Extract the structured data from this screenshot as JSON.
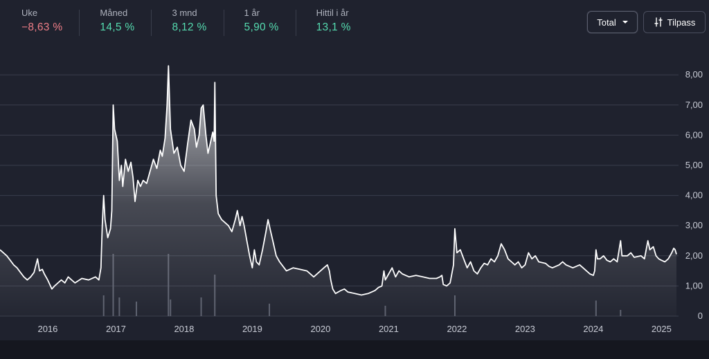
{
  "stats": [
    {
      "label": "Uke",
      "value": "−8,63 %",
      "sign": "neg"
    },
    {
      "label": "Måned",
      "value": "14,5 %",
      "sign": "pos"
    },
    {
      "label": "3 mnd",
      "value": "8,12 %",
      "sign": "pos"
    },
    {
      "label": "1 år",
      "value": "5,90 %",
      "sign": "pos"
    },
    {
      "label": "Hittil i år",
      "value": "13,1 %",
      "sign": "pos"
    }
  ],
  "controls": {
    "period_label": "Total",
    "customize_label": "Tilpass"
  },
  "colors": {
    "negative": "#f07f88",
    "positive": "#55dcb0",
    "line": "#ffffff",
    "background": "#1f222e"
  },
  "chart_data": {
    "type": "area",
    "x_tick_labels": [
      "2016",
      "2017",
      "2018",
      "2019",
      "2020",
      "2021",
      "2022",
      "2023",
      "2024",
      "2025"
    ],
    "y_tick_labels": [
      "0",
      "1,00",
      "2,00",
      "3,00",
      "4,00",
      "5,00",
      "6,00",
      "7,00",
      "8,00"
    ],
    "ylim": [
      0,
      8.5
    ],
    "xlim": [
      2015.3,
      2025.25
    ],
    "grid": true,
    "y_axis_side": "right",
    "series": [
      {
        "points": [
          [
            2015.3,
            2.2
          ],
          [
            2015.35,
            2.1
          ],
          [
            2015.4,
            2.0
          ],
          [
            2015.45,
            1.85
          ],
          [
            2015.5,
            1.7
          ],
          [
            2015.55,
            1.6
          ],
          [
            2015.6,
            1.45
          ],
          [
            2015.65,
            1.3
          ],
          [
            2015.7,
            1.2
          ],
          [
            2015.75,
            1.3
          ],
          [
            2015.8,
            1.45
          ],
          [
            2015.85,
            1.9
          ],
          [
            2015.88,
            1.5
          ],
          [
            2015.92,
            1.55
          ],
          [
            2015.95,
            1.4
          ],
          [
            2016.0,
            1.2
          ],
          [
            2016.03,
            1.05
          ],
          [
            2016.06,
            0.9
          ],
          [
            2016.1,
            1.0
          ],
          [
            2016.15,
            1.1
          ],
          [
            2016.2,
            1.2
          ],
          [
            2016.25,
            1.1
          ],
          [
            2016.3,
            1.3
          ],
          [
            2016.35,
            1.2
          ],
          [
            2016.4,
            1.1
          ],
          [
            2016.5,
            1.25
          ],
          [
            2016.6,
            1.2
          ],
          [
            2016.7,
            1.3
          ],
          [
            2016.75,
            1.2
          ],
          [
            2016.78,
            1.6
          ],
          [
            2016.8,
            3.0
          ],
          [
            2016.82,
            4.0
          ],
          [
            2016.84,
            3.2
          ],
          [
            2016.88,
            2.6
          ],
          [
            2016.92,
            2.9
          ],
          [
            2016.94,
            3.5
          ],
          [
            2016.96,
            7.0
          ],
          [
            2016.98,
            6.2
          ],
          [
            2017.02,
            5.8
          ],
          [
            2017.05,
            4.5
          ],
          [
            2017.08,
            5.0
          ],
          [
            2017.1,
            4.3
          ],
          [
            2017.14,
            5.2
          ],
          [
            2017.18,
            4.8
          ],
          [
            2017.22,
            5.1
          ],
          [
            2017.25,
            4.6
          ],
          [
            2017.28,
            3.8
          ],
          [
            2017.32,
            4.5
          ],
          [
            2017.36,
            4.3
          ],
          [
            2017.4,
            4.5
          ],
          [
            2017.45,
            4.4
          ],
          [
            2017.5,
            4.8
          ],
          [
            2017.55,
            5.2
          ],
          [
            2017.6,
            4.9
          ],
          [
            2017.65,
            5.5
          ],
          [
            2017.68,
            5.3
          ],
          [
            2017.72,
            5.9
          ],
          [
            2017.75,
            7.0
          ],
          [
            2017.77,
            8.3
          ],
          [
            2017.8,
            6.2
          ],
          [
            2017.85,
            5.4
          ],
          [
            2017.9,
            5.6
          ],
          [
            2017.95,
            5.0
          ],
          [
            2018.0,
            4.8
          ],
          [
            2018.05,
            5.7
          ],
          [
            2018.1,
            6.5
          ],
          [
            2018.15,
            6.2
          ],
          [
            2018.18,
            5.6
          ],
          [
            2018.22,
            6.0
          ],
          [
            2018.25,
            6.9
          ],
          [
            2018.28,
            7.0
          ],
          [
            2018.32,
            6.0
          ],
          [
            2018.35,
            5.4
          ],
          [
            2018.38,
            5.7
          ],
          [
            2018.42,
            6.1
          ],
          [
            2018.44,
            5.8
          ],
          [
            2018.45,
            7.75
          ],
          [
            2018.47,
            4.0
          ],
          [
            2018.5,
            3.4
          ],
          [
            2018.55,
            3.2
          ],
          [
            2018.6,
            3.1
          ],
          [
            2018.65,
            3.0
          ],
          [
            2018.7,
            2.8
          ],
          [
            2018.75,
            3.2
          ],
          [
            2018.78,
            3.5
          ],
          [
            2018.82,
            3.0
          ],
          [
            2018.85,
            3.3
          ],
          [
            2018.88,
            3.0
          ],
          [
            2018.92,
            2.5
          ],
          [
            2018.96,
            2.0
          ],
          [
            2019.0,
            1.6
          ],
          [
            2019.03,
            2.2
          ],
          [
            2019.06,
            1.8
          ],
          [
            2019.1,
            1.7
          ],
          [
            2019.15,
            2.2
          ],
          [
            2019.2,
            2.8
          ],
          [
            2019.23,
            3.2
          ],
          [
            2019.26,
            2.9
          ],
          [
            2019.3,
            2.5
          ],
          [
            2019.35,
            2.0
          ],
          [
            2019.4,
            1.8
          ],
          [
            2019.5,
            1.5
          ],
          [
            2019.6,
            1.6
          ],
          [
            2019.7,
            1.55
          ],
          [
            2019.8,
            1.5
          ],
          [
            2019.9,
            1.3
          ],
          [
            2020.0,
            1.5
          ],
          [
            2020.05,
            1.6
          ],
          [
            2020.1,
            1.7
          ],
          [
            2020.13,
            1.5
          ],
          [
            2020.15,
            1.2
          ],
          [
            2020.18,
            0.9
          ],
          [
            2020.22,
            0.75
          ],
          [
            2020.3,
            0.85
          ],
          [
            2020.35,
            0.9
          ],
          [
            2020.4,
            0.8
          ],
          [
            2020.5,
            0.75
          ],
          [
            2020.6,
            0.7
          ],
          [
            2020.7,
            0.75
          ],
          [
            2020.8,
            0.85
          ],
          [
            2020.85,
            0.95
          ],
          [
            2020.9,
            1.0
          ],
          [
            2020.93,
            1.5
          ],
          [
            2020.95,
            1.2
          ],
          [
            2021.0,
            1.4
          ],
          [
            2021.05,
            1.6
          ],
          [
            2021.1,
            1.3
          ],
          [
            2021.15,
            1.5
          ],
          [
            2021.2,
            1.4
          ],
          [
            2021.3,
            1.3
          ],
          [
            2021.4,
            1.35
          ],
          [
            2021.5,
            1.3
          ],
          [
            2021.6,
            1.25
          ],
          [
            2021.7,
            1.25
          ],
          [
            2021.75,
            1.3
          ],
          [
            2021.78,
            1.35
          ],
          [
            2021.8,
            1.05
          ],
          [
            2021.85,
            1.0
          ],
          [
            2021.9,
            1.1
          ],
          [
            2021.95,
            1.7
          ],
          [
            2021.97,
            2.9
          ],
          [
            2022.0,
            2.1
          ],
          [
            2022.05,
            2.2
          ],
          [
            2022.1,
            1.9
          ],
          [
            2022.15,
            1.6
          ],
          [
            2022.2,
            1.8
          ],
          [
            2022.25,
            1.5
          ],
          [
            2022.3,
            1.4
          ],
          [
            2022.35,
            1.6
          ],
          [
            2022.4,
            1.75
          ],
          [
            2022.45,
            1.7
          ],
          [
            2022.5,
            1.9
          ],
          [
            2022.55,
            1.8
          ],
          [
            2022.6,
            2.0
          ],
          [
            2022.65,
            2.4
          ],
          [
            2022.7,
            2.2
          ],
          [
            2022.75,
            1.9
          ],
          [
            2022.8,
            1.8
          ],
          [
            2022.85,
            1.7
          ],
          [
            2022.9,
            1.8
          ],
          [
            2022.95,
            1.6
          ],
          [
            2023.0,
            1.7
          ],
          [
            2023.05,
            2.1
          ],
          [
            2023.1,
            1.9
          ],
          [
            2023.15,
            2.0
          ],
          [
            2023.2,
            1.8
          ],
          [
            2023.3,
            1.75
          ],
          [
            2023.35,
            1.65
          ],
          [
            2023.4,
            1.6
          ],
          [
            2023.5,
            1.7
          ],
          [
            2023.55,
            1.8
          ],
          [
            2023.6,
            1.7
          ],
          [
            2023.7,
            1.6
          ],
          [
            2023.8,
            1.7
          ],
          [
            2023.85,
            1.6
          ],
          [
            2023.9,
            1.5
          ],
          [
            2023.95,
            1.4
          ],
          [
            2024.0,
            1.35
          ],
          [
            2024.02,
            1.5
          ],
          [
            2024.04,
            2.2
          ],
          [
            2024.06,
            1.9
          ],
          [
            2024.1,
            1.9
          ],
          [
            2024.15,
            2.0
          ],
          [
            2024.2,
            1.85
          ],
          [
            2024.25,
            1.8
          ],
          [
            2024.3,
            1.9
          ],
          [
            2024.35,
            1.8
          ],
          [
            2024.4,
            2.5
          ],
          [
            2024.42,
            2.0
          ],
          [
            2024.5,
            2.0
          ],
          [
            2024.55,
            2.1
          ],
          [
            2024.6,
            1.95
          ],
          [
            2024.7,
            2.0
          ],
          [
            2024.75,
            1.9
          ],
          [
            2024.8,
            2.5
          ],
          [
            2024.83,
            2.2
          ],
          [
            2024.88,
            2.3
          ],
          [
            2024.92,
            2.0
          ],
          [
            2024.96,
            1.9
          ],
          [
            2025.0,
            1.85
          ],
          [
            2025.05,
            1.8
          ],
          [
            2025.1,
            1.9
          ],
          [
            2025.15,
            2.1
          ],
          [
            2025.18,
            2.25
          ],
          [
            2025.2,
            2.2
          ],
          [
            2025.22,
            2.05
          ]
        ]
      }
    ],
    "volume_spikes": [
      [
        2016.82,
        1.0
      ],
      [
        2016.96,
        3.0
      ],
      [
        2017.05,
        0.9
      ],
      [
        2017.3,
        0.7
      ],
      [
        2017.77,
        3.0
      ],
      [
        2017.8,
        0.8
      ],
      [
        2018.25,
        0.9
      ],
      [
        2018.45,
        2.0
      ],
      [
        2019.25,
        0.6
      ],
      [
        2020.95,
        0.5
      ],
      [
        2021.97,
        1.0
      ],
      [
        2024.04,
        0.75
      ],
      [
        2024.4,
        0.3
      ]
    ]
  }
}
